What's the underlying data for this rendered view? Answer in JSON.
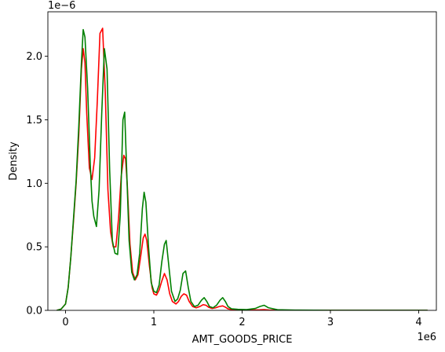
{
  "chart_data": {
    "type": "line",
    "xlabel": "AMT_GOODS_PRICE",
    "ylabel": "Density",
    "x_offset_text": "1e6",
    "y_offset_text": "1e−6",
    "xlim": [
      -0.2,
      4.2
    ],
    "ylim": [
      0.0,
      2.35
    ],
    "x_ticks": [
      0,
      1,
      2,
      3,
      4
    ],
    "x_tick_labels": [
      "0",
      "1",
      "2",
      "3",
      "4"
    ],
    "y_ticks": [
      0.0,
      0.5,
      1.0,
      1.5,
      2.0
    ],
    "y_tick_labels": [
      "0.0",
      "0.5",
      "1.0",
      "1.5",
      "2.0"
    ],
    "grid": false,
    "series": [
      {
        "color": "#ff0000",
        "x": [
          -0.1,
          -0.05,
          0.0,
          0.03,
          0.06,
          0.09,
          0.12,
          0.15,
          0.18,
          0.2,
          0.22,
          0.24,
          0.27,
          0.3,
          0.33,
          0.36,
          0.39,
          0.42,
          0.45,
          0.48,
          0.51,
          0.54,
          0.57,
          0.6,
          0.63,
          0.66,
          0.68,
          0.7,
          0.73,
          0.76,
          0.79,
          0.82,
          0.85,
          0.88,
          0.9,
          0.92,
          0.95,
          0.98,
          1.0,
          1.03,
          1.06,
          1.09,
          1.12,
          1.15,
          1.18,
          1.21,
          1.25,
          1.28,
          1.31,
          1.34,
          1.37,
          1.4,
          1.44,
          1.48,
          1.52,
          1.56,
          1.59,
          1.62,
          1.66,
          1.7,
          1.74,
          1.78,
          1.81,
          1.84,
          1.88,
          1.92,
          2.0,
          2.1,
          2.2,
          2.25,
          2.3,
          2.4,
          2.6,
          3.0,
          3.5,
          4.0,
          4.1
        ],
        "y": [
          0.0,
          0.01,
          0.05,
          0.18,
          0.42,
          0.7,
          1.0,
          1.38,
          1.9,
          2.06,
          1.95,
          1.55,
          1.12,
          1.03,
          1.2,
          1.65,
          2.18,
          2.22,
          1.72,
          0.95,
          0.62,
          0.5,
          0.5,
          0.72,
          1.05,
          1.22,
          1.19,
          0.98,
          0.52,
          0.3,
          0.24,
          0.28,
          0.42,
          0.57,
          0.6,
          0.55,
          0.35,
          0.18,
          0.13,
          0.12,
          0.16,
          0.23,
          0.29,
          0.24,
          0.13,
          0.07,
          0.05,
          0.07,
          0.11,
          0.13,
          0.12,
          0.07,
          0.03,
          0.02,
          0.03,
          0.045,
          0.04,
          0.025,
          0.015,
          0.02,
          0.03,
          0.035,
          0.025,
          0.012,
          0.006,
          0.004,
          0.003,
          0.002,
          0.004,
          0.006,
          0.003,
          0.001,
          0.001,
          0.0005,
          0.0003,
          0.0002,
          0.0001
        ]
      },
      {
        "color": "#008000",
        "x": [
          -0.1,
          -0.05,
          0.0,
          0.03,
          0.06,
          0.09,
          0.12,
          0.15,
          0.18,
          0.2,
          0.22,
          0.25,
          0.28,
          0.3,
          0.32,
          0.35,
          0.38,
          0.41,
          0.44,
          0.47,
          0.5,
          0.53,
          0.56,
          0.59,
          0.62,
          0.65,
          0.67,
          0.69,
          0.72,
          0.75,
          0.78,
          0.81,
          0.84,
          0.87,
          0.89,
          0.91,
          0.94,
          0.97,
          1.0,
          1.03,
          1.06,
          1.09,
          1.12,
          1.14,
          1.17,
          1.2,
          1.24,
          1.27,
          1.3,
          1.33,
          1.36,
          1.39,
          1.42,
          1.46,
          1.5,
          1.54,
          1.57,
          1.6,
          1.63,
          1.67,
          1.71,
          1.75,
          1.78,
          1.81,
          1.84,
          1.88,
          1.95,
          2.05,
          2.15,
          2.2,
          2.25,
          2.3,
          2.4,
          2.6,
          3.0,
          3.5,
          4.0,
          4.1
        ],
        "y": [
          0.0,
          0.01,
          0.05,
          0.18,
          0.42,
          0.72,
          1.02,
          1.45,
          1.95,
          2.21,
          2.15,
          1.75,
          1.15,
          0.86,
          0.74,
          0.66,
          0.95,
          1.55,
          2.06,
          1.9,
          1.1,
          0.55,
          0.45,
          0.44,
          0.75,
          1.5,
          1.56,
          1.15,
          0.55,
          0.3,
          0.24,
          0.28,
          0.45,
          0.8,
          0.93,
          0.85,
          0.5,
          0.22,
          0.15,
          0.14,
          0.2,
          0.38,
          0.52,
          0.55,
          0.35,
          0.15,
          0.07,
          0.09,
          0.16,
          0.29,
          0.31,
          0.18,
          0.07,
          0.03,
          0.04,
          0.08,
          0.1,
          0.07,
          0.03,
          0.02,
          0.04,
          0.08,
          0.1,
          0.07,
          0.03,
          0.012,
          0.008,
          0.006,
          0.015,
          0.03,
          0.04,
          0.02,
          0.005,
          0.002,
          0.0008,
          0.0004,
          0.0002,
          0.0001
        ]
      }
    ]
  }
}
